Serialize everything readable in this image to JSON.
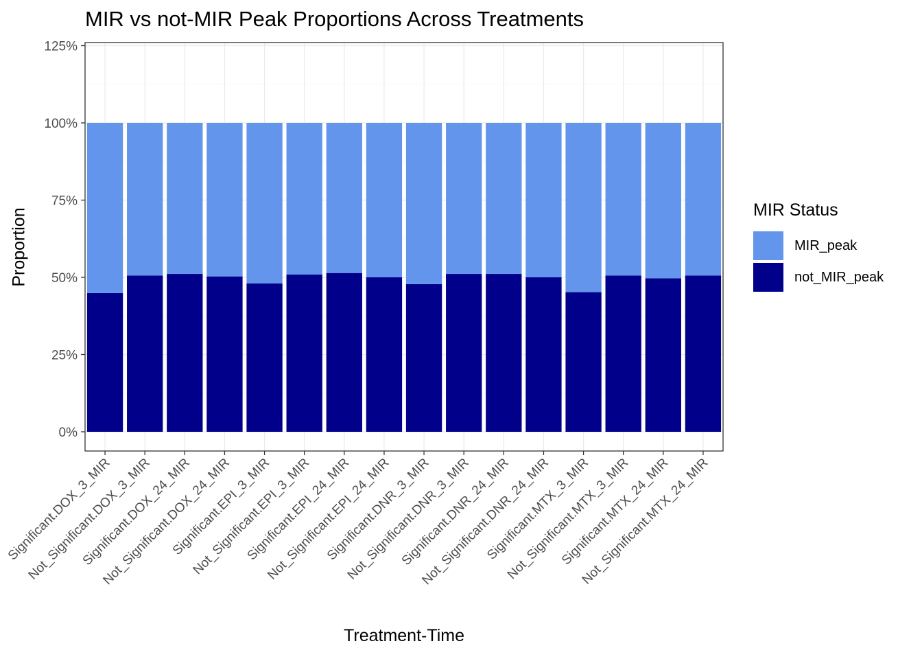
{
  "chart_data": {
    "type": "bar",
    "stacked": true,
    "title": "MIR vs not-MIR Peak Proportions Across Treatments",
    "xlabel": "Treatment-Time",
    "ylabel": "Proportion",
    "ylim": [
      -0.06,
      1.25
    ],
    "yticks": [
      "0%",
      "25%",
      "50%",
      "75%",
      "100%",
      "125%"
    ],
    "ytick_values": [
      0,
      0.25,
      0.5,
      0.75,
      1.0,
      1.25
    ],
    "grid": true,
    "legend": {
      "title": "MIR Status",
      "position": "right"
    },
    "categories": [
      "Significant.DOX_3_MIR",
      "Not_Significant.DOX_3_MIR",
      "Significant.DOX_24_MIR",
      "Not_Significant.DOX_24_MIR",
      "Significant.EPI_3_MIR",
      "Not_Significant.EPI_3_MIR",
      "Significant.EPI_24_MIR",
      "Not_Significant.EPI_24_MIR",
      "Significant.DNR_3_MIR",
      "Not_Significant.DNR_3_MIR",
      "Significant.DNR_24_MIR",
      "Not_Significant.DNR_24_MIR",
      "Significant.MTX_3_MIR",
      "Not_Significant.MTX_3_MIR",
      "Significant.MTX_24_MIR",
      "Not_Significant.MTX_24_MIR"
    ],
    "series": [
      {
        "name": "not_MIR_peak",
        "color": "#00008B",
        "values": [
          0.449,
          0.506,
          0.511,
          0.503,
          0.48,
          0.509,
          0.514,
          0.5,
          0.478,
          0.511,
          0.511,
          0.5,
          0.452,
          0.506,
          0.497,
          0.506
        ]
      },
      {
        "name": "MIR_peak",
        "color": "#6495ED",
        "values": [
          0.551,
          0.494,
          0.489,
          0.497,
          0.52,
          0.491,
          0.486,
          0.5,
          0.522,
          0.489,
          0.489,
          0.5,
          0.548,
          0.494,
          0.503,
          0.494
        ]
      }
    ]
  }
}
